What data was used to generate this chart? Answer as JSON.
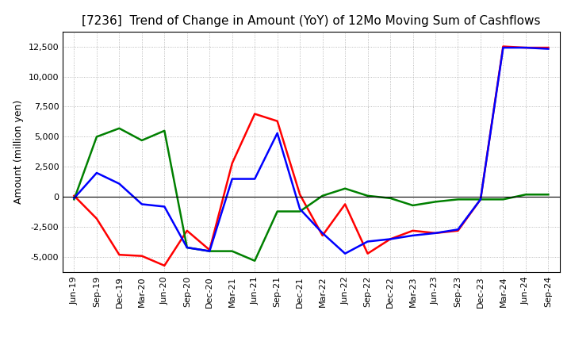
{
  "title": "[7236]  Trend of Change in Amount (YoY) of 12Mo Moving Sum of Cashflows",
  "ylabel": "Amount (million yen)",
  "x_labels": [
    "Jun-19",
    "Sep-19",
    "Dec-19",
    "Mar-20",
    "Jun-20",
    "Sep-20",
    "Dec-20",
    "Mar-21",
    "Jun-21",
    "Sep-21",
    "Dec-21",
    "Mar-22",
    "Jun-22",
    "Sep-22",
    "Dec-22",
    "Mar-23",
    "Jun-23",
    "Sep-23",
    "Dec-23",
    "Mar-24",
    "Jun-24",
    "Sep-24"
  ],
  "operating": [
    100,
    -1800,
    -4800,
    -4900,
    -5700,
    -2800,
    -4400,
    2800,
    6900,
    6300,
    200,
    -3200,
    -600,
    -4700,
    -3500,
    -2800,
    -3000,
    -2800,
    -200,
    12500,
    12400,
    12400
  ],
  "investing": [
    -200,
    5000,
    5700,
    4700,
    5500,
    -4200,
    -4500,
    -4500,
    -5300,
    -1200,
    -1200,
    100,
    700,
    100,
    -100,
    -700,
    -400,
    -200,
    -200,
    -200,
    200,
    200
  ],
  "free": [
    -100,
    2000,
    1100,
    -600,
    -800,
    -4200,
    -4500,
    1500,
    1500,
    5300,
    -1000,
    -3000,
    -4700,
    -3700,
    -3500,
    -3200,
    -3000,
    -2700,
    -200,
    12400,
    12400,
    12300
  ],
  "operating_color": "#ff0000",
  "investing_color": "#008000",
  "free_color": "#0000ff",
  "ylim": [
    -6250,
    13750
  ],
  "yticks": [
    -5000,
    -2500,
    0,
    2500,
    5000,
    7500,
    10000,
    12500
  ],
  "background_color": "#ffffff",
  "plot_bg_color": "#f5f5f5",
  "grid_color": "#aaaaaa",
  "title_fontsize": 11,
  "axis_fontsize": 8
}
